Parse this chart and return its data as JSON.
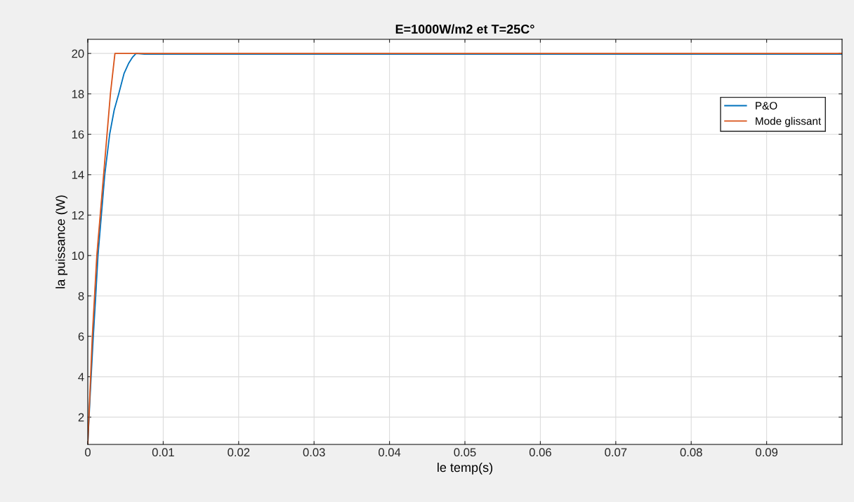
{
  "chart_data": {
    "type": "line",
    "title": "E=1000W/m2 et T=25C°",
    "xlabel": "le temp(s)",
    "ylabel": "la puissance (W)",
    "xlim": [
      0,
      0.1
    ],
    "ylim": [
      0.65,
      20.7
    ],
    "xticks": [
      0,
      0.01,
      0.02,
      0.03,
      0.04,
      0.05,
      0.06,
      0.07,
      0.08,
      0.09
    ],
    "yticks": [
      2,
      4,
      6,
      8,
      10,
      12,
      14,
      16,
      18,
      20
    ],
    "grid": true,
    "legend": "top right",
    "line_style": "solid",
    "series": [
      {
        "name": "P&O",
        "color": "#0072bd",
        "x": [
          0,
          0.0003,
          0.0007,
          0.00105,
          0.00135,
          0.0018,
          0.00225,
          0.0029,
          0.0035,
          0.0041,
          0.0048,
          0.0054,
          0.0059,
          0.0064,
          0.0075,
          0.009,
          0.1
        ],
        "values": [
          0.7,
          3,
          5.8,
          8,
          10,
          12,
          14,
          16,
          17.2,
          18,
          19,
          19.5,
          19.8,
          20,
          19.97,
          19.97,
          19.97
        ]
      },
      {
        "name": "Mode glissant",
        "color": "#d95319",
        "x": [
          0,
          0.00015,
          0.0006,
          0.0012,
          0.0021,
          0.003,
          0.0036,
          0.1
        ],
        "values": [
          0.7,
          2,
          6,
          10,
          14,
          18,
          20,
          20
        ]
      }
    ]
  }
}
